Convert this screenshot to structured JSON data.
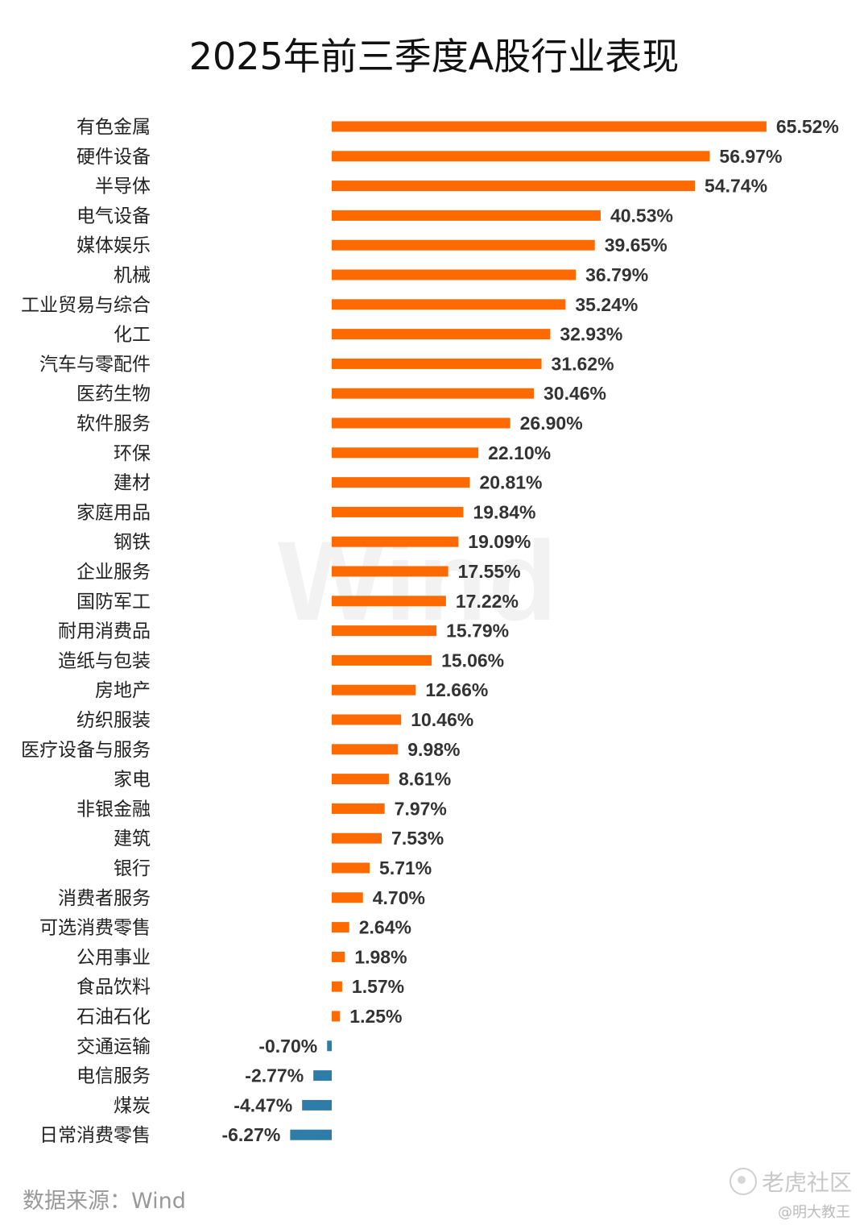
{
  "title": "2025年前三季度A股行业表现",
  "source": "数据来源：Wind",
  "watermark": "Wind",
  "community_label": "老虎社区",
  "author": "@明大教王",
  "colors": {
    "positive": "#FF6A00",
    "negative": "#2E7CA8"
  },
  "chart_data": {
    "type": "bar",
    "orientation": "horizontal",
    "title": "2025年前三季度A股行业表现",
    "categories": [
      "有色金属",
      "硬件设备",
      "半导体",
      "电气设备",
      "媒体娱乐",
      "机械",
      "工业贸易与综合",
      "化工",
      "汽车与零配件",
      "医药生物",
      "软件服务",
      "环保",
      "建材",
      "家庭用品",
      "钢铁",
      "企业服务",
      "国防军工",
      "耐用消费品",
      "造纸与包装",
      "房地产",
      "纺织服装",
      "医疗设备与服务",
      "家电",
      "非银金融",
      "建筑",
      "银行",
      "消费者服务",
      "可选消费零售",
      "公用事业",
      "食品饮料",
      "石油石化",
      "交通运输",
      "电信服务",
      "煤炭",
      "日常消费零售"
    ],
    "values": [
      65.52,
      56.97,
      54.74,
      40.53,
      39.65,
      36.79,
      35.24,
      32.93,
      31.62,
      30.46,
      26.9,
      22.1,
      20.81,
      19.84,
      19.09,
      17.55,
      17.22,
      15.79,
      15.06,
      12.66,
      10.46,
      9.98,
      8.61,
      7.97,
      7.53,
      5.71,
      4.7,
      2.64,
      1.98,
      1.57,
      1.25,
      -0.7,
      -2.77,
      -4.47,
      -6.27
    ],
    "labels": [
      "65.52%",
      "56.97%",
      "54.74%",
      "40.53%",
      "39.65%",
      "36.79%",
      "35.24%",
      "32.93%",
      "31.62%",
      "30.46%",
      "26.90%",
      "22.10%",
      "20.81%",
      "19.84%",
      "19.09%",
      "17.55%",
      "17.22%",
      "15.79%",
      "15.06%",
      "12.66%",
      "10.46%",
      "9.98%",
      "8.61%",
      "7.97%",
      "7.53%",
      "5.71%",
      "4.70%",
      "2.64%",
      "1.98%",
      "1.57%",
      "1.25%",
      "-0.70%",
      "-2.77%",
      "-4.47%",
      "-6.27%"
    ],
    "unit": "%",
    "grid": false,
    "legend": "none"
  }
}
